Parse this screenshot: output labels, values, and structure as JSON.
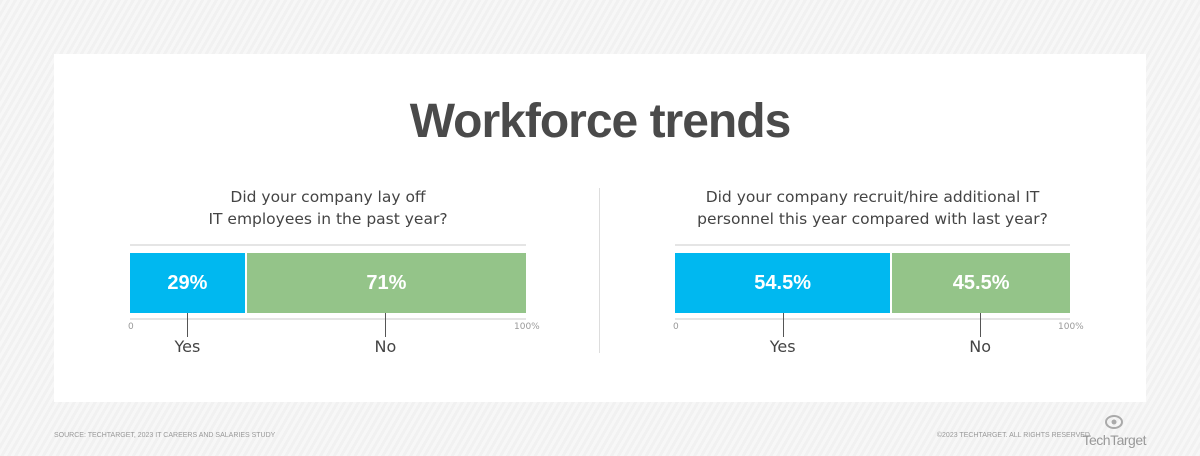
{
  "title": "Workforce trends",
  "colors": {
    "yes": "#00b8f0",
    "no": "#94c489"
  },
  "chart_data": [
    {
      "type": "bar",
      "stacked": true,
      "orientation": "horizontal",
      "title": "Did your company lay off IT employees in the past year?",
      "title_lines": [
        "Did your company lay off",
        "IT employees in the past year?"
      ],
      "categories": [
        "Yes",
        "No"
      ],
      "values": [
        29,
        71
      ],
      "labels": [
        "29%",
        "71%"
      ],
      "xlim": [
        0,
        100
      ],
      "ticks": [
        "0",
        "100%"
      ]
    },
    {
      "type": "bar",
      "stacked": true,
      "orientation": "horizontal",
      "title": "Did your company recruit/hire additional IT personnel this year compared with last year?",
      "title_lines": [
        "Did your company recruit/hire additional IT",
        "personnel this year compared with last year?"
      ],
      "categories": [
        "Yes",
        "No"
      ],
      "values": [
        54.5,
        45.5
      ],
      "labels": [
        "54.5%",
        "45.5%"
      ],
      "xlim": [
        0,
        100
      ],
      "ticks": [
        "0",
        "100%"
      ]
    }
  ],
  "footer": {
    "source": "Source: TechTarget, 2023 IT Careers and Salaries Study",
    "copyright": "©2023 TechTarget. All rights reserved",
    "logo": "TechTarget"
  }
}
